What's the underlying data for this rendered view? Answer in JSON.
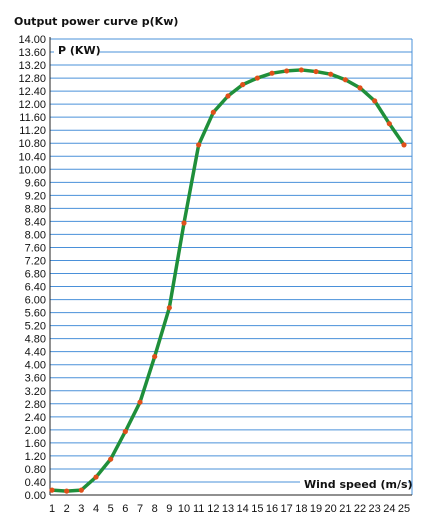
{
  "chart_data": {
    "type": "line",
    "title": "Output power curve p(Kw)",
    "ylabel": "P (KW)",
    "xlabel": "Wind speed (m/s)",
    "xlim": [
      1,
      25
    ],
    "ylim": [
      0,
      14
    ],
    "grid": true,
    "x_ticks": [
      "1",
      "2",
      "3",
      "4",
      "5",
      "6",
      "7",
      "8",
      "9",
      "10",
      "11",
      "12",
      "13",
      "14",
      "15",
      "16",
      "17",
      "18",
      "19",
      "20",
      "21",
      "22",
      "23",
      "24",
      "25"
    ],
    "y_ticks": [
      "0.00",
      "0.40",
      "0.80",
      "1.20",
      "1.60",
      "2.00",
      "2.40",
      "2.80",
      "3.20",
      "3.60",
      "4.00",
      "4.40",
      "4.80",
      "5.20",
      "5.60",
      "6.00",
      "6.40",
      "6.80",
      "7.20",
      "7.60",
      "8.00",
      "8.40",
      "8.80",
      "9.20",
      "9.60",
      "10.00",
      "10.40",
      "10.80",
      "11.20",
      "11.60",
      "12.00",
      "12.40",
      "12.80",
      "13.20",
      "13.60",
      "14.00"
    ],
    "series": [
      {
        "line_color": "#1f8f3a",
        "marker_color": "#e0501a",
        "x": [
          1,
          2,
          3,
          4,
          5,
          6,
          7,
          8,
          9,
          10,
          11,
          12,
          13,
          14,
          15,
          16,
          17,
          18,
          19,
          20,
          21,
          22,
          23,
          24,
          25
        ],
        "y": [
          0.15,
          0.12,
          0.15,
          0.55,
          1.1,
          1.95,
          2.85,
          4.25,
          5.75,
          8.35,
          10.75,
          11.75,
          12.25,
          12.6,
          12.8,
          12.95,
          13.02,
          13.05,
          13.0,
          12.92,
          12.75,
          12.5,
          12.1,
          11.4,
          10.75
        ]
      }
    ]
  }
}
